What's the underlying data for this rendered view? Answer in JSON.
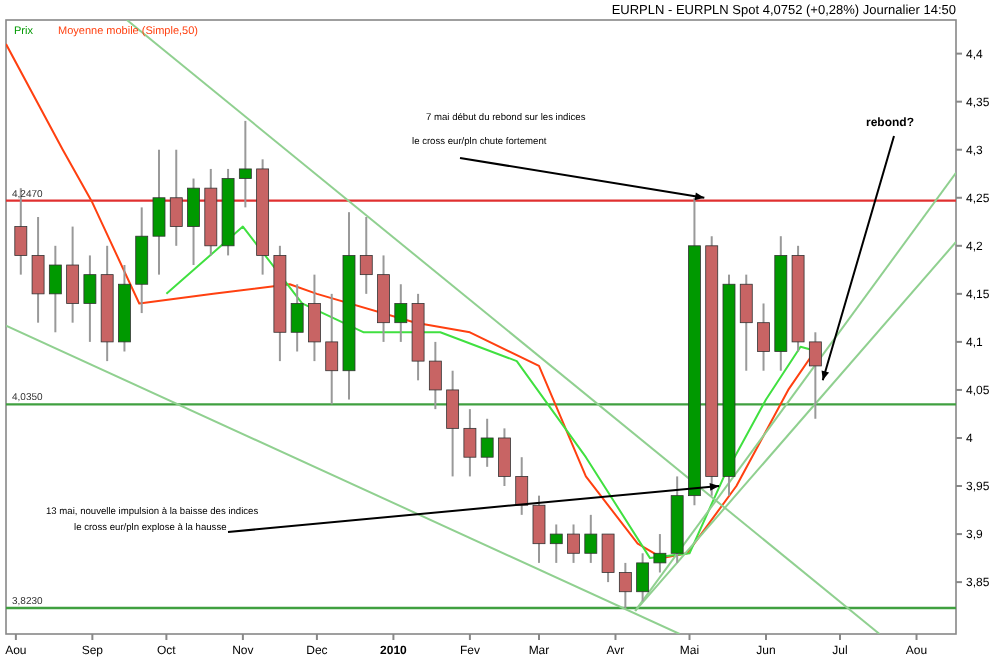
{
  "chart_data": {
    "type": "candlestick",
    "title": "EURPLN - EURPLN Spot   4,0752 (+0,28%)   Journalier  14:50",
    "legend": "top left",
    "grid": false,
    "xlim": [
      "2009-07-28",
      "2010-08-17"
    ],
    "xticks": [
      {
        "value": "2009-08-01",
        "label": "Aou"
      },
      {
        "value": "2009-09-01",
        "label": "Sep"
      },
      {
        "value": "2009-10-01",
        "label": "Oct"
      },
      {
        "value": "2009-11-01",
        "label": "Nov"
      },
      {
        "value": "2009-12-01",
        "label": "Dec"
      },
      {
        "value": "2010-01-01",
        "label": "2010"
      },
      {
        "value": "2010-02-01",
        "label": "Fev"
      },
      {
        "value": "2010-03-01",
        "label": "Mar"
      },
      {
        "value": "2010-04-01",
        "label": "Avr"
      },
      {
        "value": "2010-05-01",
        "label": "Mai"
      },
      {
        "value": "2010-06-01",
        "label": "Jun"
      },
      {
        "value": "2010-07-01",
        "label": "Jul"
      },
      {
        "value": "2010-08-01",
        "label": "Aou"
      }
    ],
    "ylim": [
      3.796,
      4.435
    ],
    "yticks": [
      {
        "value": 3.85,
        "label": "3,85"
      },
      {
        "value": 3.9,
        "label": "3,9"
      },
      {
        "value": 3.95,
        "label": "3,95"
      },
      {
        "value": 4,
        "label": "4"
      },
      {
        "value": 4.05,
        "label": "4,05"
      },
      {
        "value": 4.1,
        "label": "4,1"
      },
      {
        "value": 4.15,
        "label": "4,15"
      },
      {
        "value": 4.2,
        "label": "4,2"
      },
      {
        "value": 4.25,
        "label": "4,25"
      },
      {
        "value": 4.3,
        "label": "4,3"
      },
      {
        "value": 4.35,
        "label": "4,35"
      },
      {
        "value": 4.4,
        "label": "4,4"
      }
    ],
    "ref_lines": [
      {
        "axis": "y",
        "value": 4.247,
        "label": "4,2470",
        "color": "#e03030"
      },
      {
        "axis": "y",
        "value": 4.035,
        "label": "4,0350",
        "color": "#40a040"
      },
      {
        "axis": "y",
        "value": 3.823,
        "label": "3,8230",
        "color": "#40a040"
      }
    ],
    "series": [
      {
        "type": "line",
        "name": "Moyenne mobile (Simple,50)",
        "color": "#ff4010",
        "x": [
          "2009-07-28",
          "2009-08-20",
          "2009-09-01",
          "2009-09-20",
          "2009-10-20",
          "2009-11-20",
          "2009-12-01",
          "2010-01-10",
          "2010-02-01",
          "2010-03-01",
          "2010-03-20",
          "2010-04-10",
          "2010-04-20",
          "2010-04-30",
          "2010-05-20",
          "2010-06-10",
          "2010-06-22"
        ],
        "values": [
          4.41,
          4.3,
          4.245,
          4.14,
          4.15,
          4.16,
          4.15,
          4.12,
          4.11,
          4.075,
          3.96,
          3.89,
          3.875,
          3.88,
          3.95,
          4.05,
          4.095
        ]
      },
      {
        "type": "line",
        "color": "#40e040",
        "x": [
          "2009-10-01",
          "2009-11-01",
          "2009-11-25",
          "2009-12-20",
          "2010-01-20",
          "2010-02-20",
          "2010-03-20",
          "2010-04-15",
          "2010-05-01",
          "2010-05-15",
          "2010-06-01",
          "2010-06-15",
          "2010-06-22"
        ],
        "values": [
          4.15,
          4.22,
          4.14,
          4.11,
          4.11,
          4.08,
          3.98,
          3.875,
          3.88,
          3.96,
          4.04,
          4.095,
          4.09
        ]
      },
      {
        "type": "line",
        "color": "#90d090",
        "x": [
          "2009-09-15",
          "2010-07-17"
        ],
        "values": [
          4.435,
          3.796
        ]
      },
      {
        "type": "line",
        "color": "#90d090",
        "x": [
          "2009-07-28",
          "2010-04-27"
        ],
        "values": [
          4.117,
          3.796
        ]
      },
      {
        "type": "line",
        "color": "#90d090",
        "x": [
          "2010-04-09",
          "2010-08-17"
        ],
        "values": [
          3.82,
          4.276
        ]
      },
      {
        "type": "line",
        "color": "#90d090",
        "x": [
          "2010-04-09",
          "2010-08-17"
        ],
        "values": [
          3.82,
          4.204
        ]
      },
      {
        "name": "Prix",
        "color": "#009900",
        "colors": [
          "#c86464",
          "#c86464",
          "#009900",
          "#c86464",
          "#009900",
          "#c86464",
          "#009900",
          "#009900",
          "#009900",
          "#c86464",
          "#009900",
          "#c86464",
          "#009900",
          "#009900",
          "#c86464",
          "#c86464",
          "#009900",
          "#c86464",
          "#c86464",
          "#009900",
          "#c86464",
          "#c86464",
          "#009900",
          "#c86464",
          "#c86464",
          "#c86464",
          "#c86464",
          "#009900",
          "#c86464",
          "#c86464",
          "#c86464",
          "#009900",
          "#c86464",
          "#009900",
          "#c86464",
          "#c86464",
          "#009900",
          "#009900",
          "#009900",
          "#009900",
          "#c86464",
          "#009900",
          "#c86464",
          "#c86464",
          "#009900",
          "#c86464",
          "#c86464"
        ],
        "x": [
          "2009-08-03",
          "2009-08-10",
          "2009-08-17",
          "2009-08-24",
          "2009-08-31",
          "2009-09-07",
          "2009-09-14",
          "2009-09-21",
          "2009-09-28",
          "2009-10-05",
          "2009-10-12",
          "2009-10-19",
          "2009-10-26",
          "2009-11-02",
          "2009-11-09",
          "2009-11-16",
          "2009-11-23",
          "2009-11-30",
          "2009-12-07",
          "2009-12-14",
          "2009-12-21",
          "2009-12-28",
          "2010-01-04",
          "2010-01-11",
          "2010-01-18",
          "2010-01-25",
          "2010-02-01",
          "2010-02-08",
          "2010-02-15",
          "2010-02-22",
          "2010-03-01",
          "2010-03-08",
          "2010-03-15",
          "2010-03-22",
          "2010-03-29",
          "2010-04-05",
          "2010-04-12",
          "2010-04-19",
          "2010-04-26",
          "2010-05-03",
          "2010-05-10",
          "2010-05-17",
          "2010-05-24",
          "2010-05-31",
          "2010-06-07",
          "2010-06-14",
          "2010-06-21"
        ],
        "ohlc": [
          [
            4.22,
            4.26,
            4.17,
            4.19
          ],
          [
            4.19,
            4.23,
            4.12,
            4.15
          ],
          [
            4.15,
            4.2,
            4.11,
            4.18
          ],
          [
            4.18,
            4.22,
            4.12,
            4.14
          ],
          [
            4.14,
            4.19,
            4.1,
            4.17
          ],
          [
            4.17,
            4.2,
            4.08,
            4.1
          ],
          [
            4.1,
            4.18,
            4.09,
            4.16
          ],
          [
            4.16,
            4.24,
            4.13,
            4.21
          ],
          [
            4.21,
            4.3,
            4.17,
            4.25
          ],
          [
            4.25,
            4.3,
            4.2,
            4.22
          ],
          [
            4.22,
            4.27,
            4.18,
            4.26
          ],
          [
            4.26,
            4.28,
            4.19,
            4.2
          ],
          [
            4.2,
            4.28,
            4.19,
            4.27
          ],
          [
            4.27,
            4.33,
            4.24,
            4.28
          ],
          [
            4.28,
            4.29,
            4.17,
            4.19
          ],
          [
            4.19,
            4.2,
            4.08,
            4.11
          ],
          [
            4.11,
            4.16,
            4.09,
            4.14
          ],
          [
            4.14,
            4.17,
            4.08,
            4.1
          ],
          [
            4.1,
            4.15,
            4.035,
            4.07
          ],
          [
            4.07,
            4.235,
            4.04,
            4.19
          ],
          [
            4.19,
            4.23,
            4.15,
            4.17
          ],
          [
            4.17,
            4.19,
            4.1,
            4.12
          ],
          [
            4.12,
            4.16,
            4.1,
            4.14
          ],
          [
            4.14,
            4.15,
            4.06,
            4.08
          ],
          [
            4.08,
            4.1,
            4.03,
            4.05
          ],
          [
            4.05,
            4.07,
            3.96,
            4.01
          ],
          [
            4.01,
            4.03,
            3.96,
            3.98
          ],
          [
            3.98,
            4.02,
            3.97,
            4
          ],
          [
            4,
            4.01,
            3.95,
            3.96
          ],
          [
            3.96,
            3.98,
            3.92,
            3.93
          ],
          [
            3.93,
            3.94,
            3.87,
            3.89
          ],
          [
            3.89,
            3.91,
            3.87,
            3.9
          ],
          [
            3.9,
            3.91,
            3.87,
            3.88
          ],
          [
            3.88,
            3.92,
            3.87,
            3.9
          ],
          [
            3.9,
            3.9,
            3.85,
            3.86
          ],
          [
            3.86,
            3.87,
            3.823,
            3.84
          ],
          [
            3.84,
            3.88,
            3.83,
            3.87
          ],
          [
            3.87,
            3.9,
            3.86,
            3.88
          ],
          [
            3.88,
            3.96,
            3.87,
            3.94
          ],
          [
            3.94,
            4.25,
            3.93,
            4.2
          ],
          [
            4.2,
            4.21,
            3.94,
            3.96
          ],
          [
            3.96,
            4.17,
            3.94,
            4.16
          ],
          [
            4.16,
            4.17,
            4.07,
            4.12
          ],
          [
            4.12,
            4.14,
            4.07,
            4.09
          ],
          [
            4.09,
            4.21,
            4.07,
            4.19
          ],
          [
            4.19,
            4.2,
            4.09,
            4.1
          ],
          [
            4.1,
            4.11,
            4.02,
            4.075
          ]
        ]
      }
    ],
    "annotations": [
      "7 mai début du rebond sur les indices",
      {
        "text": "le cross eur/pln chute fortement",
        "x": "2010-05-07",
        "y": 4.25
      },
      {
        "text": "rebond?",
        "x": "2010-06-24",
        "y": 4.06
      },
      "13 mai, nouvelle impulsion à la baisse des indices",
      {
        "text": "le cross eur/pln explose à la hausse",
        "x": "2010-05-13",
        "y": 3.95
      }
    ]
  }
}
